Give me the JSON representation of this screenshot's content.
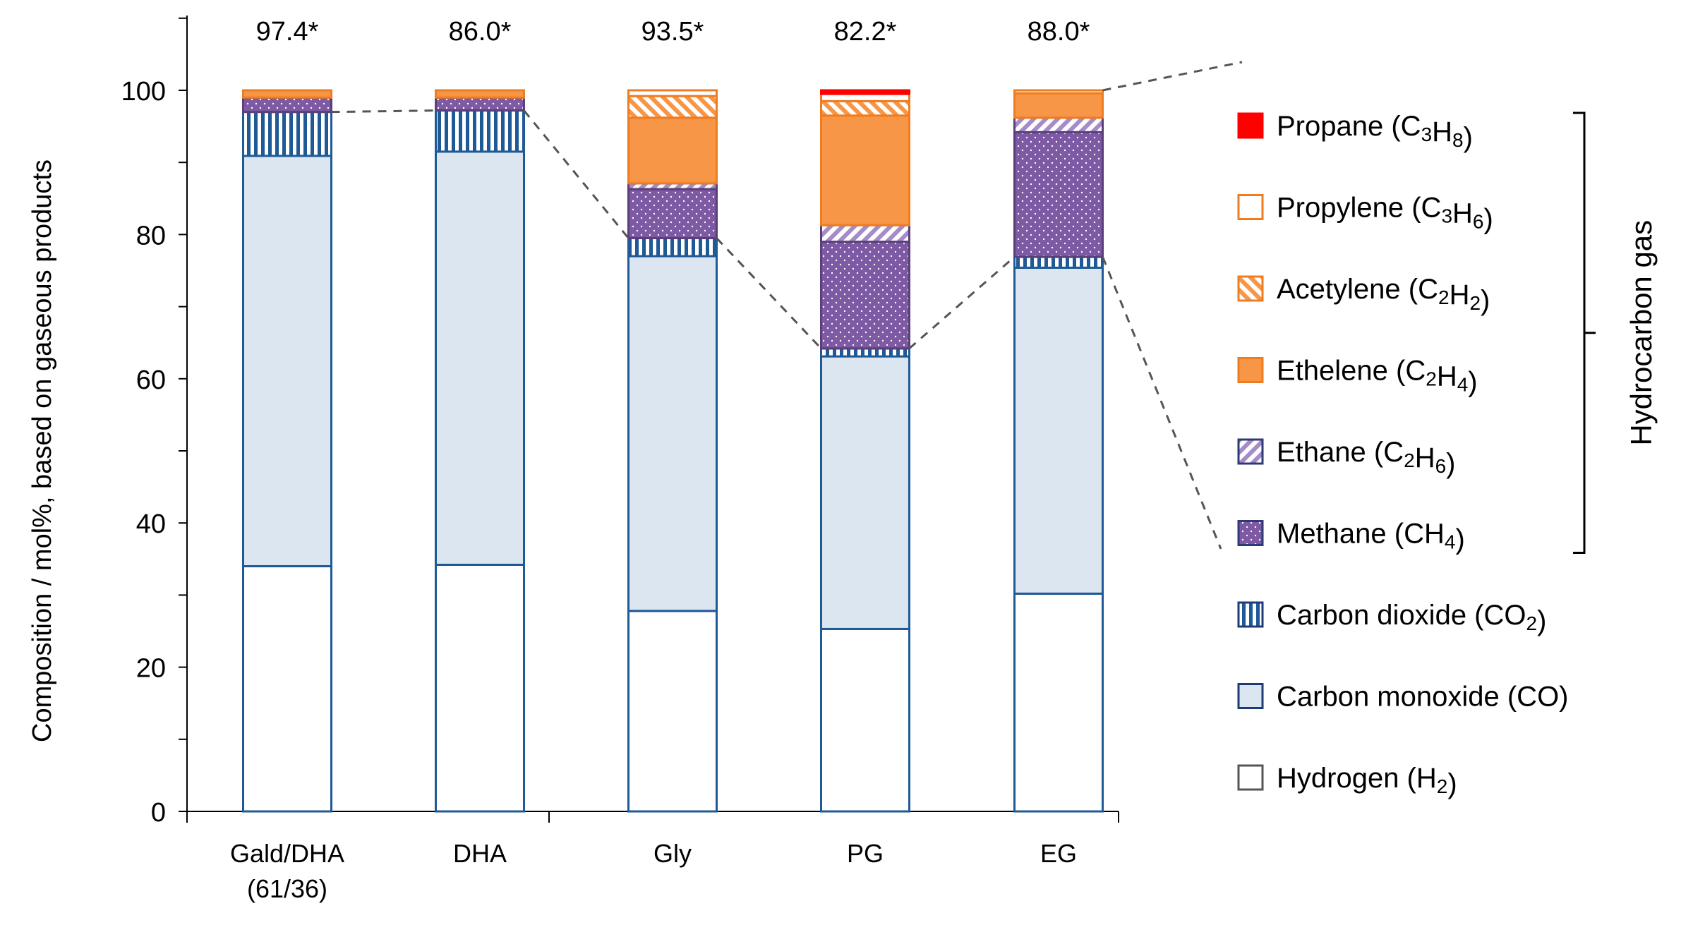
{
  "chart_data": {
    "type": "bar",
    "stacked": true,
    "ylabel": "Composition  / mol%,  based on  gaseous products",
    "ylim": [
      0,
      100
    ],
    "yticks": [
      0,
      20,
      40,
      60,
      80,
      100
    ],
    "categories": [
      {
        "line1": "Gald/DHA",
        "line2": "(61/36)"
      },
      {
        "line1": "DHA",
        "line2": ""
      },
      {
        "line1": "Gly",
        "line2": ""
      },
      {
        "line1": "PG",
        "line2": ""
      },
      {
        "line1": "EG",
        "line2": ""
      }
    ],
    "top_labels": [
      "97.4*",
      "86.0*",
      "93.5*",
      "82.2*",
      "88.0*"
    ],
    "colors": {
      "hydrogen": "#ffffff",
      "co": "#dce6f1",
      "co2_fill": "#1f5a96",
      "methane": "#7d5aa3",
      "ethane": "#a58cc8",
      "ethylene": "#f79646",
      "acetylene": "#f79646",
      "propylene": "#ffffff",
      "propane": "#ff0000",
      "bar_edge": "#1f5a96",
      "hc_edge": "#f07c20"
    },
    "series": [
      {
        "key": "hydrogen",
        "name": "Hydrogen",
        "sub": "2",
        "label_pre": "Hydrogen (H",
        "label_post": ")",
        "values": [
          34.0,
          34.2,
          27.8,
          25.3,
          30.2
        ]
      },
      {
        "key": "co",
        "name": "Carbon monoxide (CO)",
        "label_pre": "Carbon monoxide (CO)",
        "sub": "",
        "label_post": "",
        "values": [
          56.9,
          57.3,
          49.2,
          37.8,
          45.2
        ]
      },
      {
        "key": "co2",
        "name": "Carbon dioxide",
        "label_pre": "Carbon dioxide (CO",
        "sub": "2",
        "label_post": ")",
        "values": [
          6.1,
          5.7,
          2.5,
          1.1,
          1.5
        ]
      },
      {
        "key": "methane",
        "name": "Methane",
        "label_pre": "Methane (CH",
        "sub": "4",
        "label_post": ")",
        "values": [
          2.0,
          1.8,
          6.8,
          14.8,
          17.3
        ]
      },
      {
        "key": "ethane",
        "name": "Ethane",
        "label_pre": "Ethane (C",
        "sub": "2",
        "mid": "H",
        "sub2": "6",
        "label_post": ")",
        "values": [
          0.0,
          0.0,
          0.8,
          2.3,
          2.0
        ]
      },
      {
        "key": "ethylene",
        "name": "Ethelene",
        "label_pre": "Ethelene (C",
        "sub": "2",
        "mid": "H",
        "sub2": "4",
        "label_post": ")",
        "values": [
          1.0,
          1.0,
          9.1,
          15.2,
          3.4
        ]
      },
      {
        "key": "acetylene",
        "name": "Acetylene",
        "label_pre": "Acetylene (C",
        "sub": "2",
        "mid": "H",
        "sub2": "2",
        "label_post": ")",
        "values": [
          0.0,
          0.0,
          3.0,
          2.0,
          0.0
        ]
      },
      {
        "key": "propylene",
        "name": "Propylene",
        "label_pre": "Propylene (C",
        "sub": "3",
        "mid": "H",
        "sub2": "6",
        "label_post": ")",
        "values": [
          0.0,
          0.0,
          0.8,
          1.0,
          0.4
        ]
      },
      {
        "key": "propane",
        "name": "Propane",
        "label_pre": "Propane (C",
        "sub": "3",
        "mid": "H",
        "sub2": "8",
        "label_post": ")",
        "values": [
          0.0,
          0.0,
          0.0,
          0.5,
          0.0
        ]
      }
    ],
    "legend_order": [
      "propane",
      "propylene",
      "acetylene",
      "ethylene",
      "ethane",
      "methane",
      "co2",
      "co",
      "hydrogen"
    ],
    "bracket_label": "Hydrocarbon gas"
  }
}
